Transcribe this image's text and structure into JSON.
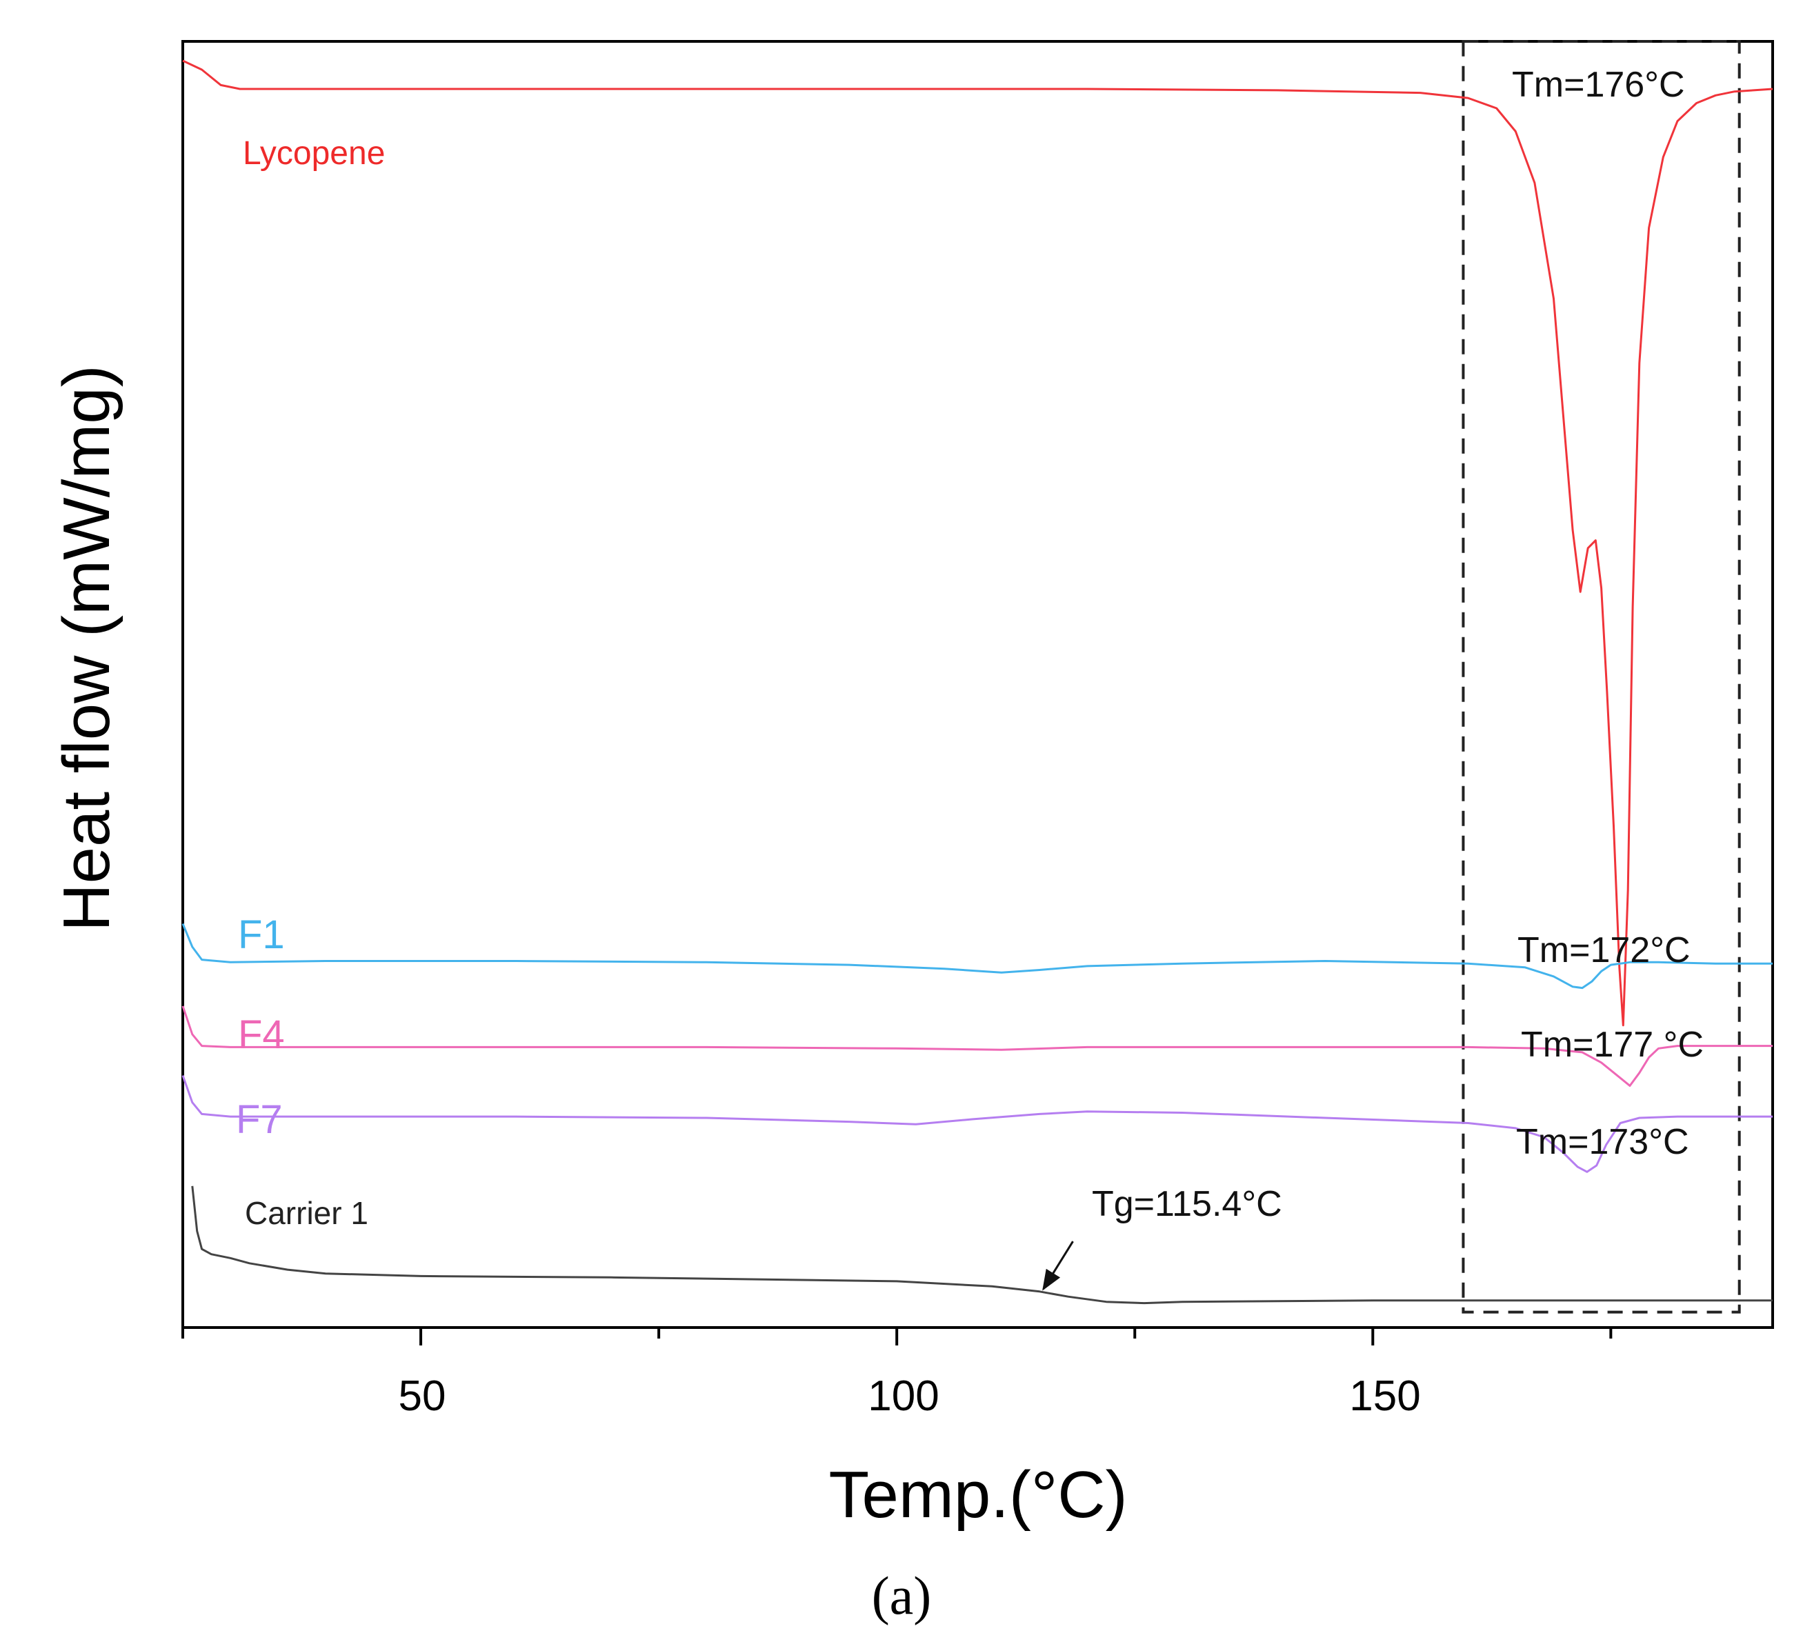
{
  "chart_data": {
    "type": "line",
    "title": "",
    "xlabel": "Temp.(°C)",
    "ylabel": "Heat flow (mW/mg)",
    "xlim": [
      25,
      192
    ],
    "ylim": [
      0,
      100
    ],
    "xticks": [
      50,
      100,
      150
    ],
    "xtick_labels": [
      "50",
      "100",
      "150"
    ],
    "panel_label": "(a)",
    "series": [
      {
        "name": "Lycopene",
        "color": "#f0343a",
        "x": [
          25,
          27,
          29,
          31,
          40,
          60,
          80,
          100,
          120,
          140,
          155,
          160,
          163,
          165,
          167,
          169,
          170,
          171,
          171.8,
          172.6,
          173.4,
          174,
          174.6,
          175.3,
          175.9,
          176.3,
          176.8,
          177.3,
          178,
          179,
          180.5,
          182,
          184,
          186,
          188,
          190,
          192
        ],
        "y": [
          98.5,
          97.8,
          96.6,
          96.3,
          96.3,
          96.3,
          96.3,
          96.3,
          96.3,
          96.2,
          96.0,
          95.6,
          94.8,
          93.0,
          89.0,
          80.0,
          71.0,
          62.0,
          57.2,
          60.6,
          61.2,
          57.5,
          49.5,
          39.0,
          28.0,
          23.5,
          34.0,
          56.0,
          75.0,
          85.5,
          91.0,
          93.8,
          95.2,
          95.8,
          96.1,
          96.2,
          96.3
        ]
      },
      {
        "name": "F1",
        "color": "#43b3ec",
        "x": [
          25,
          26,
          27,
          30,
          40,
          60,
          80,
          95,
          105,
          111,
          115,
          120,
          130,
          145,
          160,
          166,
          169,
          171,
          172,
          173,
          174,
          175,
          177,
          180,
          186,
          192
        ],
        "y": [
          31.4,
          29.6,
          28.6,
          28.4,
          28.5,
          28.5,
          28.4,
          28.2,
          27.9,
          27.6,
          27.8,
          28.1,
          28.3,
          28.5,
          28.3,
          28.0,
          27.3,
          26.5,
          26.4,
          26.9,
          27.7,
          28.2,
          28.4,
          28.4,
          28.3,
          28.3
        ]
      },
      {
        "name": "F4",
        "color": "#ee67b5",
        "x": [
          25,
          26,
          27,
          30,
          50,
          80,
          100,
          111,
          120,
          140,
          160,
          168,
          172,
          174,
          176,
          177,
          178,
          179,
          180,
          182,
          186,
          192
        ],
        "y": [
          25.0,
          22.8,
          21.9,
          21.8,
          21.8,
          21.8,
          21.7,
          21.6,
          21.8,
          21.8,
          21.8,
          21.7,
          21.4,
          20.6,
          19.4,
          18.8,
          19.8,
          21.0,
          21.7,
          21.9,
          21.9,
          21.9
        ]
      },
      {
        "name": "F7",
        "color": "#b57ef0",
        "x": [
          25,
          26,
          27,
          30,
          40,
          60,
          80,
          95,
          102,
          108,
          115,
          120,
          130,
          145,
          160,
          165,
          168,
          170,
          171.5,
          172.5,
          173.5,
          174.5,
          176,
          178,
          182,
          192
        ],
        "y": [
          19.6,
          17.5,
          16.6,
          16.4,
          16.4,
          16.4,
          16.3,
          16.0,
          15.8,
          16.2,
          16.6,
          16.8,
          16.7,
          16.3,
          15.9,
          15.5,
          14.8,
          13.6,
          12.5,
          12.1,
          12.6,
          14.2,
          15.9,
          16.3,
          16.4,
          16.4
        ]
      },
      {
        "name": "Carrier 1",
        "color": "#444444",
        "x": [
          26,
          26.5,
          27,
          28,
          30,
          32,
          36,
          40,
          50,
          70,
          90,
          100,
          110,
          115,
          118,
          122,
          126,
          130,
          150,
          170,
          192
        ],
        "y": [
          11.0,
          7.5,
          6.1,
          5.7,
          5.4,
          5.0,
          4.5,
          4.2,
          4.0,
          3.9,
          3.7,
          3.6,
          3.2,
          2.8,
          2.4,
          2.0,
          1.9,
          2.0,
          2.1,
          2.1,
          2.1
        ]
      }
    ],
    "labels": {
      "lycopene": "Lycopene",
      "f1": "F1",
      "f4": "F4",
      "f7": "F7",
      "carrier1": "Carrier 1"
    },
    "annotations": {
      "tm_lycopene": "Tm=176°C",
      "tm_f1": "Tm=172°C",
      "tm_f4": "Tm=177 °C",
      "tm_f7": "Tm=173°C",
      "tg_carrier": "Tg=115.4°C"
    },
    "highlight_box": {
      "x_range": [
        159.5,
        188.5
      ],
      "y_range": [
        1.2,
        100
      ],
      "style": "dashed"
    },
    "tg_arrow": {
      "from": [
        118.5,
        6.7
      ],
      "to": [
        115.4,
        3.0
      ]
    }
  }
}
